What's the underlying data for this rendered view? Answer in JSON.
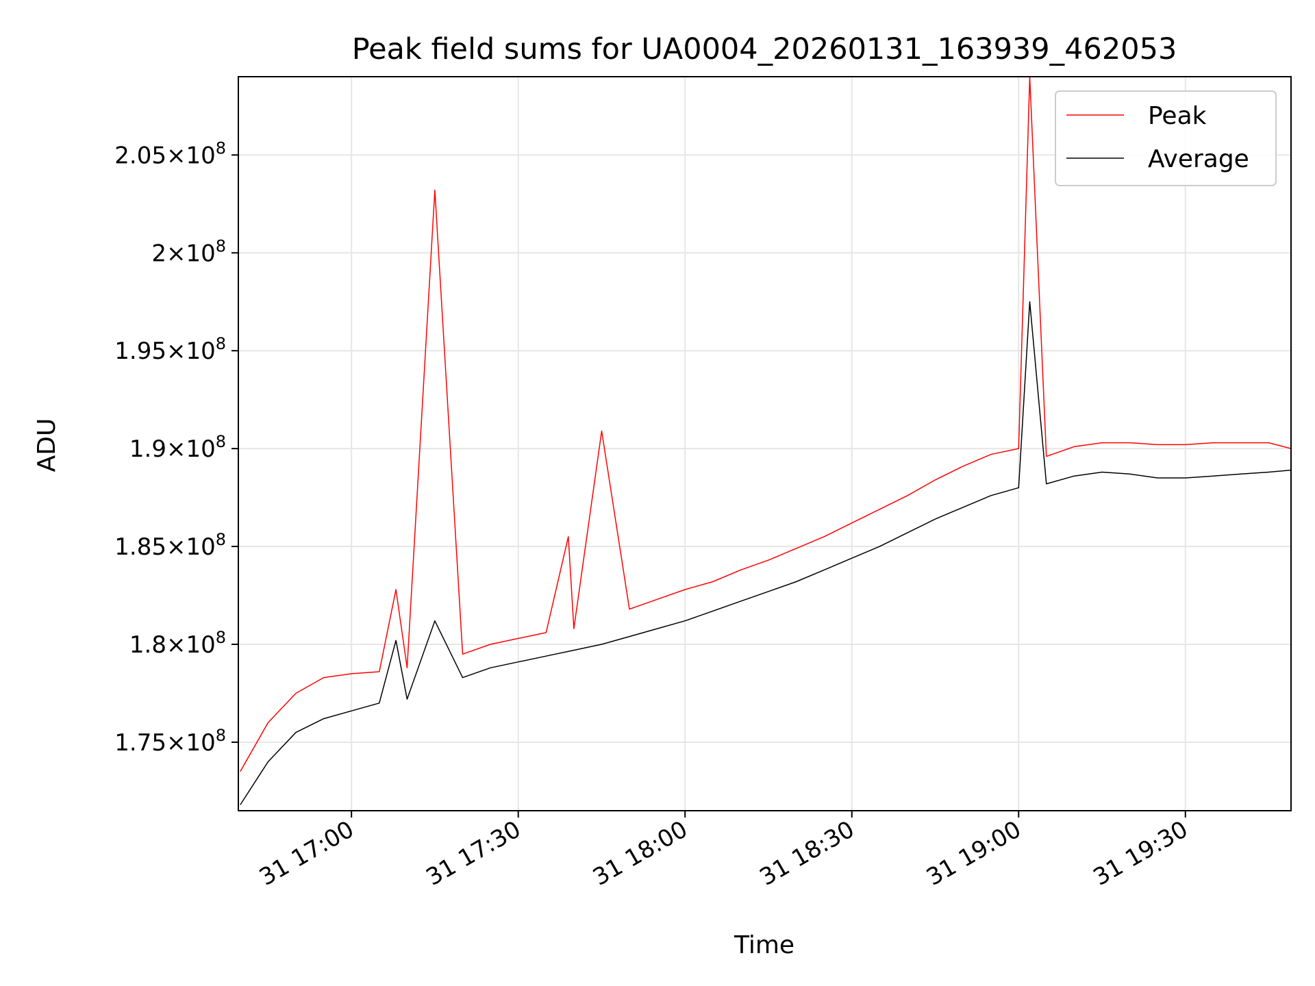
{
  "chart_data": {
    "type": "line",
    "title": "Peak field sums for UA0004_20260131_163939_462053",
    "xlabel": "Time",
    "ylabel": "ADU",
    "x_range": [
      "2026-01-31 16:39:39",
      "2026-01-31 19:49:00"
    ],
    "ylim": [
      171500000,
      209000000
    ],
    "grid": true,
    "legend_position": "top-right",
    "x_ticks": [
      {
        "t": "2026-01-31 17:00",
        "label": "31 17:00"
      },
      {
        "t": "2026-01-31 17:30",
        "label": "31 17:30"
      },
      {
        "t": "2026-01-31 18:00",
        "label": "31 18:00"
      },
      {
        "t": "2026-01-31 18:30",
        "label": "31 18:30"
      },
      {
        "t": "2026-01-31 19:00",
        "label": "31 19:00"
      },
      {
        "t": "2026-01-31 19:30",
        "label": "31 19:30"
      }
    ],
    "y_ticks": [
      {
        "value": 175000000,
        "mantissa": "1.75",
        "exponent": "8"
      },
      {
        "value": 180000000,
        "mantissa": "1.8",
        "exponent": "8"
      },
      {
        "value": 185000000,
        "mantissa": "1.85",
        "exponent": "8"
      },
      {
        "value": 190000000,
        "mantissa": "1.9",
        "exponent": "8"
      },
      {
        "value": 195000000,
        "mantissa": "1.95",
        "exponent": "8"
      },
      {
        "value": 200000000,
        "mantissa": "2",
        "exponent": "8"
      },
      {
        "value": 205000000,
        "mantissa": "2.05",
        "exponent": "8"
      }
    ],
    "series": [
      {
        "name": "Peak",
        "color": "#ff0000",
        "x": [
          "2026-01-31 16:40",
          "2026-01-31 16:45",
          "2026-01-31 16:50",
          "2026-01-31 16:55",
          "2026-01-31 17:00",
          "2026-01-31 17:05",
          "2026-01-31 17:08",
          "2026-01-31 17:10",
          "2026-01-31 17:15",
          "2026-01-31 17:20",
          "2026-01-31 17:25",
          "2026-01-31 17:30",
          "2026-01-31 17:35",
          "2026-01-31 17:39",
          "2026-01-31 17:40",
          "2026-01-31 17:45",
          "2026-01-31 17:50",
          "2026-01-31 17:55",
          "2026-01-31 18:00",
          "2026-01-31 18:05",
          "2026-01-31 18:10",
          "2026-01-31 18:15",
          "2026-01-31 18:20",
          "2026-01-31 18:25",
          "2026-01-31 18:30",
          "2026-01-31 18:35",
          "2026-01-31 18:40",
          "2026-01-31 18:45",
          "2026-01-31 18:50",
          "2026-01-31 18:55",
          "2026-01-31 19:00",
          "2026-01-31 19:02",
          "2026-01-31 19:05",
          "2026-01-31 19:10",
          "2026-01-31 19:15",
          "2026-01-31 19:20",
          "2026-01-31 19:25",
          "2026-01-31 19:30",
          "2026-01-31 19:35",
          "2026-01-31 19:40",
          "2026-01-31 19:45",
          "2026-01-31 19:49"
        ],
        "values": [
          173500000,
          176000000,
          177500000,
          178300000,
          178500000,
          178600000,
          182800000,
          178800000,
          203200000,
          179500000,
          180000000,
          180300000,
          180600000,
          185500000,
          180800000,
          190900000,
          181800000,
          182300000,
          182800000,
          183200000,
          183800000,
          184300000,
          184900000,
          185500000,
          186200000,
          186900000,
          187600000,
          188400000,
          189100000,
          189700000,
          190000000,
          209000000,
          189600000,
          190100000,
          190300000,
          190300000,
          190200000,
          190200000,
          190300000,
          190300000,
          190300000,
          190000000
        ]
      },
      {
        "name": "Average",
        "color": "#000000",
        "x": [
          "2026-01-31 16:40",
          "2026-01-31 16:45",
          "2026-01-31 16:50",
          "2026-01-31 16:55",
          "2026-01-31 17:00",
          "2026-01-31 17:05",
          "2026-01-31 17:08",
          "2026-01-31 17:10",
          "2026-01-31 17:15",
          "2026-01-31 17:20",
          "2026-01-31 17:25",
          "2026-01-31 17:30",
          "2026-01-31 17:35",
          "2026-01-31 17:40",
          "2026-01-31 17:45",
          "2026-01-31 17:50",
          "2026-01-31 17:55",
          "2026-01-31 18:00",
          "2026-01-31 18:05",
          "2026-01-31 18:10",
          "2026-01-31 18:15",
          "2026-01-31 18:20",
          "2026-01-31 18:25",
          "2026-01-31 18:30",
          "2026-01-31 18:35",
          "2026-01-31 18:40",
          "2026-01-31 18:45",
          "2026-01-31 18:50",
          "2026-01-31 18:55",
          "2026-01-31 19:00",
          "2026-01-31 19:02",
          "2026-01-31 19:05",
          "2026-01-31 19:10",
          "2026-01-31 19:15",
          "2026-01-31 19:20",
          "2026-01-31 19:25",
          "2026-01-31 19:30",
          "2026-01-31 19:35",
          "2026-01-31 19:40",
          "2026-01-31 19:45",
          "2026-01-31 19:49"
        ],
        "values": [
          171800000,
          174000000,
          175500000,
          176200000,
          176600000,
          177000000,
          180200000,
          177200000,
          181200000,
          178300000,
          178800000,
          179100000,
          179400000,
          179700000,
          180000000,
          180400000,
          180800000,
          181200000,
          181700000,
          182200000,
          182700000,
          183200000,
          183800000,
          184400000,
          185000000,
          185700000,
          186400000,
          187000000,
          187600000,
          188000000,
          197500000,
          188200000,
          188600000,
          188800000,
          188700000,
          188500000,
          188500000,
          188600000,
          188700000,
          188800000,
          188900000
        ]
      }
    ]
  }
}
